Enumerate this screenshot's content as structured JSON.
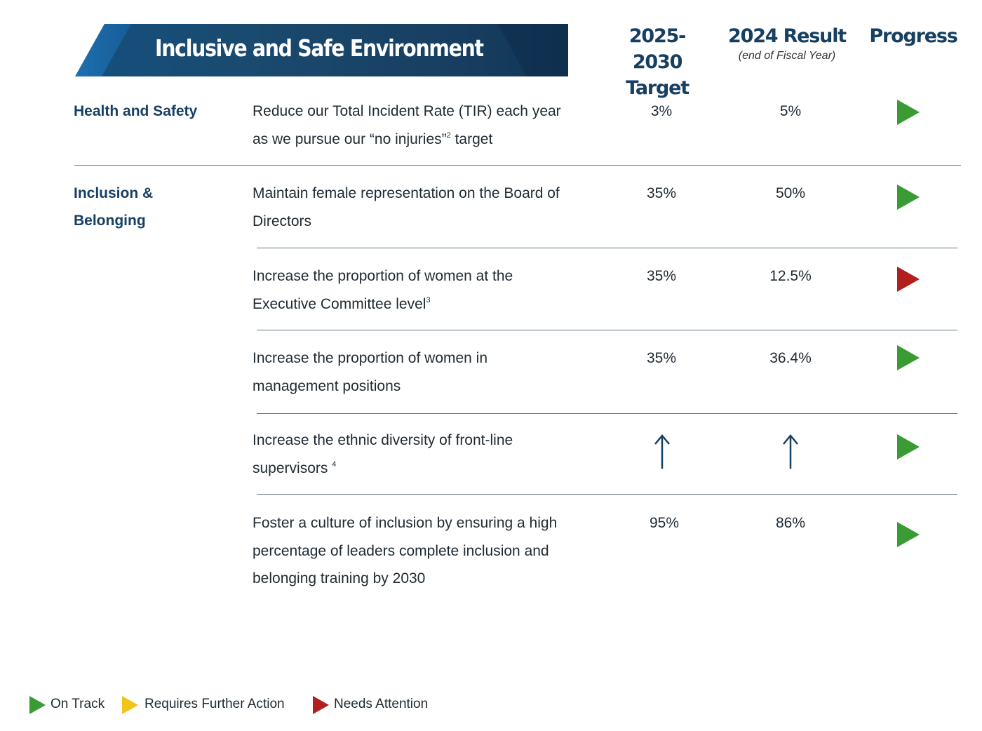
{
  "banner": {
    "title": "Inclusive and Safe Environment"
  },
  "columns": {
    "target_line1": "2025-2030",
    "target_line2": "Target",
    "result_title": "2024 Result",
    "result_sub": "(end of Fiscal Year)",
    "progress": "Progress"
  },
  "categories": {
    "health": "Health and Safety",
    "inclusion_line1": "Inclusion &",
    "inclusion_line2": "Belonging"
  },
  "rows": [
    {
      "line1": "Reduce our Total Incident Rate (TIR)  each year",
      "line2a": "as we pursue our  “no injuries”",
      "line2_sup": "2",
      "line2b": " target",
      "target": "3%",
      "result": "5%",
      "status": "On Track"
    },
    {
      "line1": "Maintain female representation on the Board of",
      "line2": "Directors",
      "target": "35%",
      "result": "50%",
      "status": "On Track"
    },
    {
      "line1": "Increase the proportion of women at the",
      "line2": "Executive Committee level",
      "line2_sup": "3",
      "target": "35%",
      "result": "12.5%",
      "status": "Needs Attention"
    },
    {
      "line1": "Increase the proportion of women in",
      "line2": "management positions",
      "target": "35%",
      "result": "36.4%",
      "status": "On Track"
    },
    {
      "line1": "Increase the ethnic diversity of front-line",
      "line2": "supervisors ",
      "line2_sup": "4",
      "target_icon": "up-arrow-icon",
      "result_icon": "up-arrow-icon",
      "status": "On Track"
    },
    {
      "line1": "Foster a culture of inclusion by ensuring a high",
      "line2": "percentage of leaders complete inclusion and",
      "line3": "belonging training by 2030",
      "target": "95%",
      "result": "86%",
      "status": "On Track"
    }
  ],
  "legend": {
    "on_track": "On Track",
    "requires_action": "Requires Further Action",
    "needs_attention": "Needs Attention"
  },
  "colors": {
    "on_track": "#3a9b35",
    "requires_action": "#f2c419",
    "needs_attention": "#b21f1f",
    "navy": "#173f61"
  }
}
